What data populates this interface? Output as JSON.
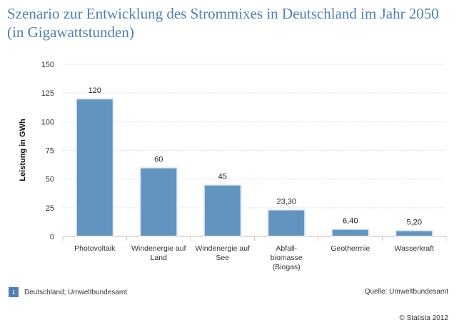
{
  "title": "Szenario zur Entwicklung des Strommixes in Deutschland im Jahr 2050 (in Gigawattstunden)",
  "footer": {
    "info_icon_glyph": "i",
    "region_note": "Deutschland; Umweltbundesamt",
    "source": "Quelle: Umweltbundesamt",
    "copyright": "© Statista 2012"
  },
  "colors": {
    "bar": "#6294bf",
    "title": "#4f7fae"
  },
  "chart_data": {
    "type": "bar",
    "ylabel": "Leistung in GWh",
    "xlabel": "",
    "ylim": [
      0,
      150
    ],
    "yticks": [
      0,
      25,
      50,
      75,
      100,
      125,
      150
    ],
    "grid": true,
    "categories": [
      [
        "Photovoltaik"
      ],
      [
        "Windenergie auf",
        "Land"
      ],
      [
        "Windenergie auf",
        "See"
      ],
      [
        "Abfall-",
        "biomasse",
        "(Biogas)"
      ],
      [
        "Geothermie"
      ],
      [
        "Wasserkraft"
      ]
    ],
    "values": [
      120,
      60,
      45,
      23.3,
      6.4,
      5.2
    ],
    "value_labels": [
      "120",
      "60",
      "45",
      "23,30",
      "6,40",
      "5,20"
    ]
  }
}
